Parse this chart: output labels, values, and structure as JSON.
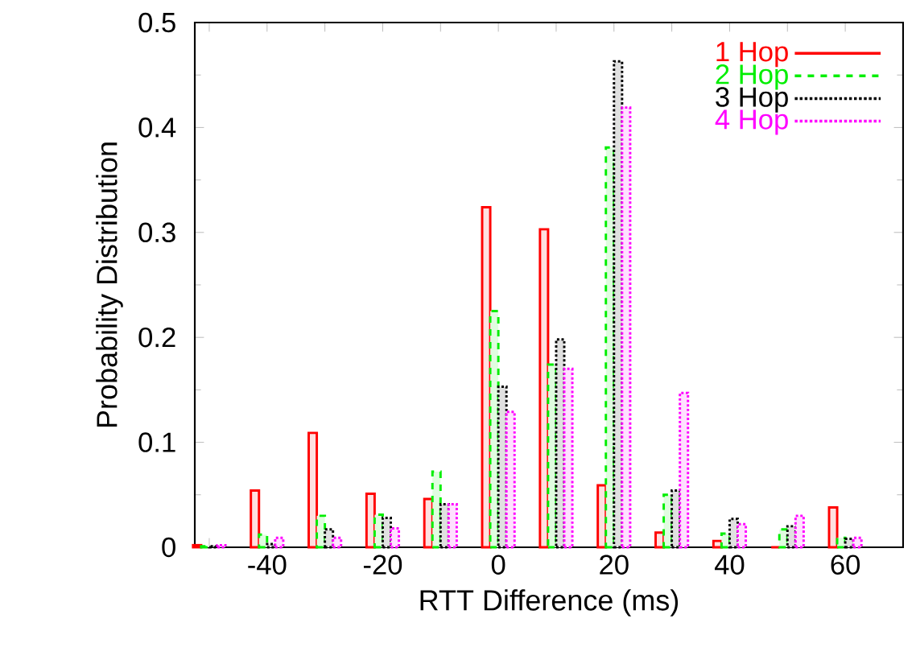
{
  "chart_data": {
    "type": "bar",
    "xlabel": "RTT Difference (ms)",
    "ylabel": "Probability Distribution",
    "x": [
      -50,
      -40,
      -30,
      -20,
      -10,
      0,
      10,
      20,
      30,
      40,
      50,
      60
    ],
    "series": [
      {
        "name": "1 Hop",
        "color": "#ff0000",
        "line_style": "solid",
        "values": [
          0.002,
          0.054,
          0.109,
          0.051,
          0.046,
          0.324,
          0.303,
          0.059,
          0.014,
          0.006,
          0,
          0.038
        ]
      },
      {
        "name": "2 Hop",
        "color": "#00ee00",
        "line_style": "dashed",
        "values": [
          0.001,
          0.012,
          0.03,
          0.031,
          0.072,
          0.225,
          0.174,
          0.381,
          0.05,
          0.013,
          0.017,
          0.009
        ]
      },
      {
        "name": "3 Hop",
        "color": "#000000",
        "line_style": "dotted",
        "values": [
          0.001,
          0.003,
          0.017,
          0.028,
          0.041,
          0.153,
          0.198,
          0.463,
          0.054,
          0.027,
          0.02,
          0.008
        ]
      },
      {
        "name": "4 Hop",
        "color": "#ff00ff",
        "line_style": "dotted",
        "values": [
          0.002,
          0.009,
          0.009,
          0.018,
          0.041,
          0.129,
          0.17,
          0.419,
          0.147,
          0.022,
          0.03,
          0.009
        ]
      }
    ],
    "xlim": [
      -52.5,
      70
    ],
    "xticks": [
      {
        "value": -50,
        "label": null
      },
      -40,
      {
        "value": -30,
        "label": null
      },
      -20,
      {
        "value": -10,
        "label": null
      },
      0,
      {
        "value": 10,
        "label": null
      },
      20,
      {
        "value": 30,
        "label": null
      },
      40,
      {
        "value": 50,
        "label": null
      },
      60,
      {
        "value": 70,
        "label": null
      }
    ],
    "ylim": [
      0,
      0.5
    ],
    "yticks": [
      0,
      0.1,
      0.2,
      0.3,
      0.4,
      0.5
    ],
    "grid": false,
    "legend": "top right"
  }
}
